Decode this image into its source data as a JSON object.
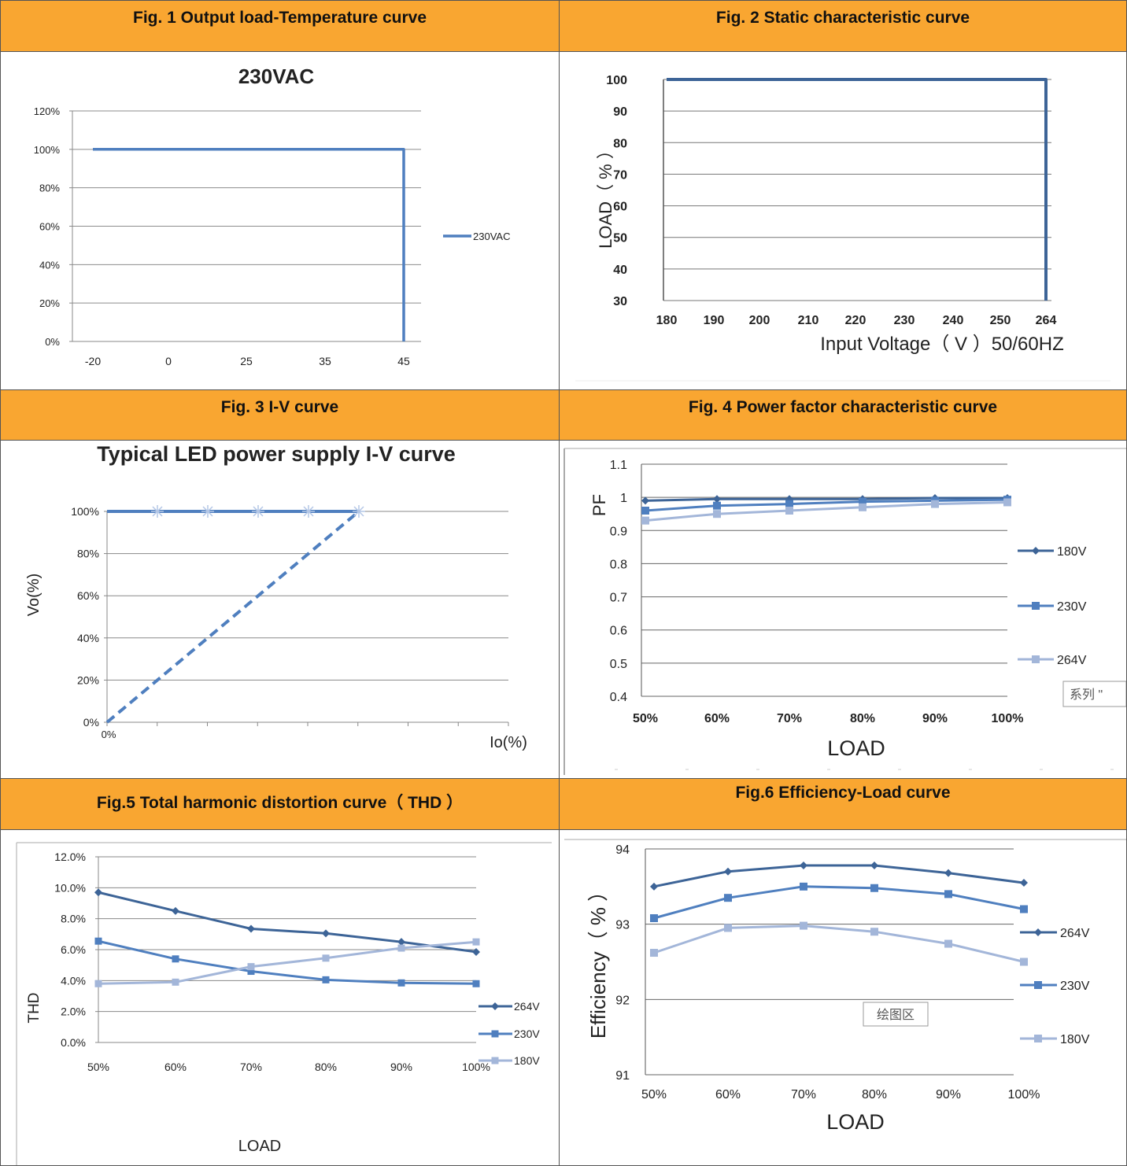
{
  "colors": {
    "header_bg": "#f9a631",
    "dark_blue": "#3d6497",
    "mid_blue": "#4f7fbf",
    "light_blue": "#a3b6d9",
    "gridline": "#777777"
  },
  "panels": [
    {
      "title": "Fig. 1 Output load-Temperature curve"
    },
    {
      "title": "Fig. 2  Static characteristic curve"
    },
    {
      "title": "Fig. 3 I-V curve"
    },
    {
      "title": "Fig. 4 Power factor characteristic curve"
    },
    {
      "title": "Fig.5 Total harmonic distortion curve（ THD ）"
    },
    {
      "title": "Fig.6 Efficiency-Load curve"
    }
  ],
  "chart_data": [
    {
      "type": "line",
      "title": "230VAC",
      "xlabel": "",
      "ylabel": "",
      "categories": [
        "-20",
        "0",
        "25",
        "35",
        "45"
      ],
      "y_ticks": [
        "0%",
        "20%",
        "40%",
        "60%",
        "80%",
        "100%",
        "120%"
      ],
      "ylim": [
        0,
        120
      ],
      "series": [
        {
          "name": "230VAC",
          "points": [
            [
              -20,
              100
            ],
            [
              45,
              100
            ],
            [
              45,
              0
            ]
          ]
        }
      ],
      "legend": "right",
      "grid": true
    },
    {
      "type": "line",
      "title": "",
      "xlabel": "Input Voltage（ V ）50/60HZ",
      "ylabel": "LOAD（ % ）",
      "categories": [
        "180",
        "190",
        "200",
        "210",
        "220",
        "230",
        "240",
        "250",
        "264"
      ],
      "y_ticks": [
        "30",
        "40",
        "50",
        "60",
        "70",
        "80",
        "90",
        "100"
      ],
      "ylim": [
        30,
        100
      ],
      "series": [
        {
          "points": [
            [
              180,
              100
            ],
            [
              264,
              100
            ],
            [
              264,
              30
            ]
          ]
        }
      ],
      "grid": true
    },
    {
      "type": "line",
      "title": "Typical LED power supply I-V curve",
      "xlabel": "Io(%)",
      "ylabel": "Vo(%)",
      "x_tick": "0%",
      "y_ticks": [
        "0%",
        "20%",
        "40%",
        "60%",
        "80%",
        "100%"
      ],
      "ylim": [
        0,
        100
      ],
      "series": [
        {
          "style": "solid",
          "points": [
            [
              0,
              100
            ],
            [
              5,
              100
            ]
          ],
          "markers": [
            1,
            2,
            3,
            4,
            5
          ]
        },
        {
          "style": "dashed",
          "points": [
            [
              0,
              0
            ],
            [
              5,
              100
            ]
          ]
        }
      ],
      "grid": true
    },
    {
      "type": "line",
      "title": "",
      "xlabel": "LOAD",
      "ylabel": "PF",
      "categories": [
        "50%",
        "60%",
        "70%",
        "80%",
        "90%",
        "100%"
      ],
      "y_ticks": [
        "0.4",
        "0.5",
        "0.6",
        "0.7",
        "0.8",
        "0.9",
        "1",
        "1.1"
      ],
      "ylim": [
        0.4,
        1.1
      ],
      "series": [
        {
          "name": "180V",
          "values": [
            0.99,
            0.995,
            0.995,
            0.995,
            0.998,
            0.998
          ]
        },
        {
          "name": "230V",
          "values": [
            0.96,
            0.975,
            0.98,
            0.987,
            0.99,
            0.993
          ]
        },
        {
          "name": "264V",
          "values": [
            0.93,
            0.95,
            0.96,
            0.97,
            0.98,
            0.985
          ]
        }
      ],
      "tooltip": "系列 \"",
      "legend": "right",
      "grid": true
    },
    {
      "type": "line",
      "title": "",
      "xlabel": "LOAD",
      "ylabel": "THD",
      "categories": [
        "50%",
        "60%",
        "70%",
        "80%",
        "90%",
        "100%"
      ],
      "y_ticks": [
        "0.0%",
        "2.0%",
        "4.0%",
        "6.0%",
        "8.0%",
        "10.0%",
        "12.0%"
      ],
      "ylim": [
        0,
        12
      ],
      "series": [
        {
          "name": "264V",
          "values": [
            9.7,
            8.5,
            7.35,
            7.05,
            6.5,
            5.85
          ]
        },
        {
          "name": "230V",
          "values": [
            6.55,
            5.4,
            4.6,
            4.05,
            3.85,
            3.8
          ]
        },
        {
          "name": "180V",
          "values": [
            3.8,
            3.9,
            4.9,
            5.45,
            6.1,
            6.5
          ]
        }
      ],
      "legend": "right",
      "grid": true
    },
    {
      "type": "line",
      "title": "",
      "xlabel": "LOAD",
      "ylabel": "Efficiency（ % ）",
      "categories": [
        "50%",
        "60%",
        "70%",
        "80%",
        "90%",
        "100%"
      ],
      "y_ticks": [
        "91",
        "92",
        "93",
        "94"
      ],
      "ylim": [
        91,
        94
      ],
      "series": [
        {
          "name": "264V",
          "values": [
            93.5,
            93.7,
            93.78,
            93.78,
            93.68,
            93.55
          ]
        },
        {
          "name": "230V",
          "values": [
            93.08,
            93.35,
            93.5,
            93.48,
            93.4,
            93.2
          ]
        },
        {
          "name": "180V",
          "values": [
            92.62,
            92.95,
            92.98,
            92.9,
            92.74,
            92.5
          ]
        }
      ],
      "tooltip": "绘图区",
      "legend": "right",
      "grid": true
    }
  ]
}
